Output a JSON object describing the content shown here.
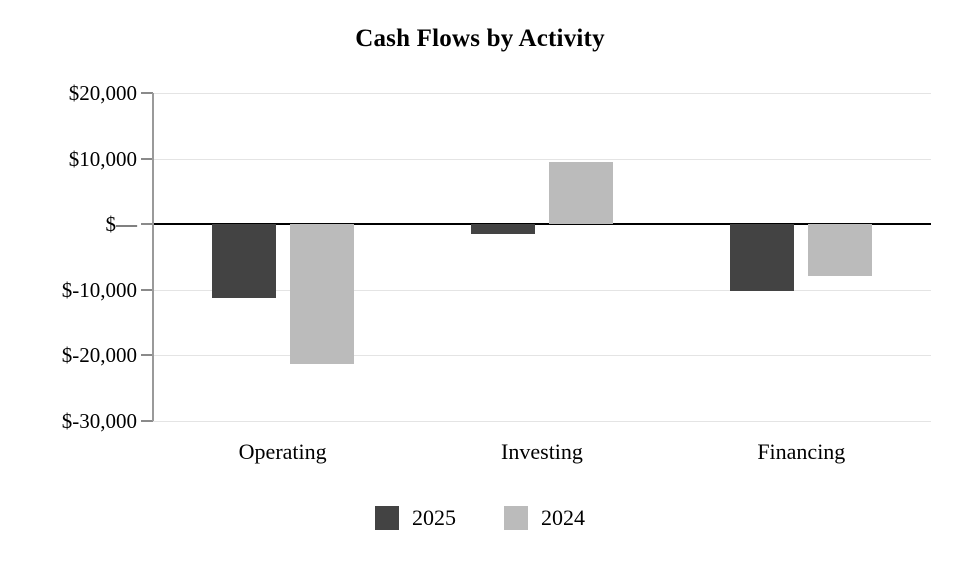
{
  "chart_data": {
    "type": "bar",
    "title": "Cash Flows by Activity",
    "categories": [
      "Operating",
      "Investing",
      "Financing"
    ],
    "series": [
      {
        "name": "2025",
        "color": "#434343",
        "values": [
          -11300,
          -1600,
          -10300
        ]
      },
      {
        "name": "2024",
        "color": "#bbbbbb",
        "values": [
          -21300,
          9500,
          -8000
        ]
      }
    ],
    "y_ticks": [
      {
        "value": 20000,
        "label": "$20,000"
      },
      {
        "value": 10000,
        "label": "$10,000"
      },
      {
        "value": 0,
        "label": "$—"
      },
      {
        "value": -10000,
        "label": "$-10,000"
      },
      {
        "value": -20000,
        "label": "$-20,000"
      },
      {
        "value": -30000,
        "label": "$-30,000"
      }
    ],
    "ylim": [
      -30000,
      20000
    ],
    "xlabel": "",
    "ylabel": "",
    "grid": true,
    "legend_position": "bottom",
    "zero_line_color": "#000000",
    "gridline_color": "#e4e4e4",
    "axis_color": "#8a8a8a"
  }
}
